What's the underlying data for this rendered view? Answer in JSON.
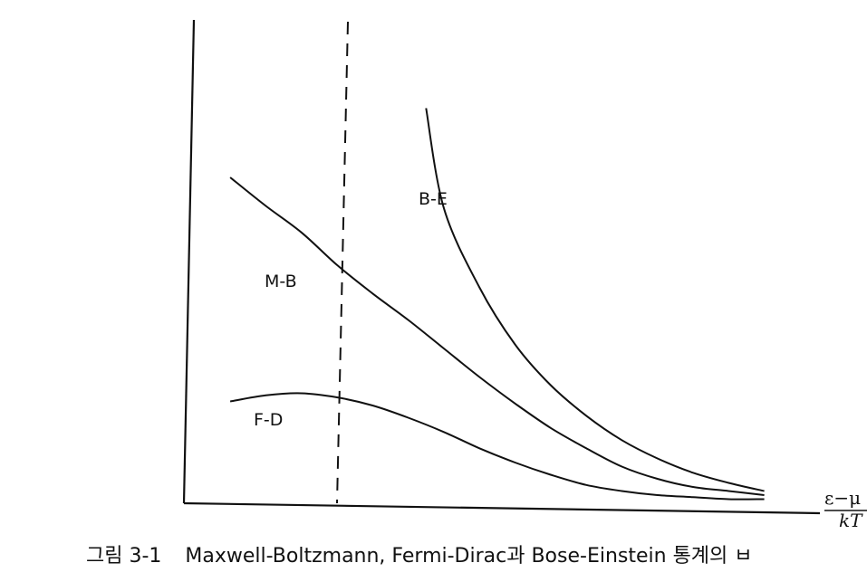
{
  "chart_data": {
    "type": "line",
    "xlabel": {
      "numerator": "ε−μ",
      "denominator": "kT"
    },
    "series": [
      {
        "name": "B-E",
        "points": [
          [
            0.25,
            1.94
          ],
          [
            0.3,
            1.45
          ],
          [
            0.4,
            1.06
          ],
          [
            0.5,
            0.78
          ],
          [
            0.6,
            0.58
          ],
          [
            0.7,
            0.43
          ],
          [
            0.8,
            0.31
          ],
          [
            0.9,
            0.22
          ],
          [
            1.0,
            0.15
          ],
          [
            1.1,
            0.1
          ],
          [
            1.2,
            0.06
          ]
        ]
      },
      {
        "name": "M-B",
        "points": [
          [
            -0.3,
            1.6
          ],
          [
            -0.2,
            1.46
          ],
          [
            -0.1,
            1.33
          ],
          [
            0.0,
            1.17
          ],
          [
            0.1,
            1.03
          ],
          [
            0.2,
            0.9
          ],
          [
            0.3,
            0.76
          ],
          [
            0.4,
            0.62
          ],
          [
            0.5,
            0.49
          ],
          [
            0.6,
            0.37
          ],
          [
            0.7,
            0.27
          ],
          [
            0.8,
            0.18
          ],
          [
            0.9,
            0.12
          ],
          [
            1.0,
            0.08
          ],
          [
            1.1,
            0.06
          ],
          [
            1.2,
            0.04
          ]
        ]
      },
      {
        "name": "F-D",
        "points": [
          [
            -0.3,
            0.5
          ],
          [
            -0.2,
            0.53
          ],
          [
            -0.1,
            0.54
          ],
          [
            0.0,
            0.52
          ],
          [
            0.1,
            0.48
          ],
          [
            0.2,
            0.42
          ],
          [
            0.3,
            0.35
          ],
          [
            0.4,
            0.27
          ],
          [
            0.5,
            0.2
          ],
          [
            0.6,
            0.14
          ],
          [
            0.7,
            0.09
          ],
          [
            0.8,
            0.06
          ],
          [
            0.9,
            0.04
          ],
          [
            1.0,
            0.03
          ],
          [
            1.1,
            0.02
          ],
          [
            1.2,
            0.02
          ]
        ]
      }
    ],
    "reference_line": {
      "style": "dashed",
      "x": 0
    },
    "ticks": "none",
    "grid": false,
    "legend": "none"
  },
  "caption": {
    "number": "그림 3-1",
    "text": "Maxwell-Boltzmann, Fermi-Dirac과 Bose-Einstein 통계의 ㅂ"
  }
}
